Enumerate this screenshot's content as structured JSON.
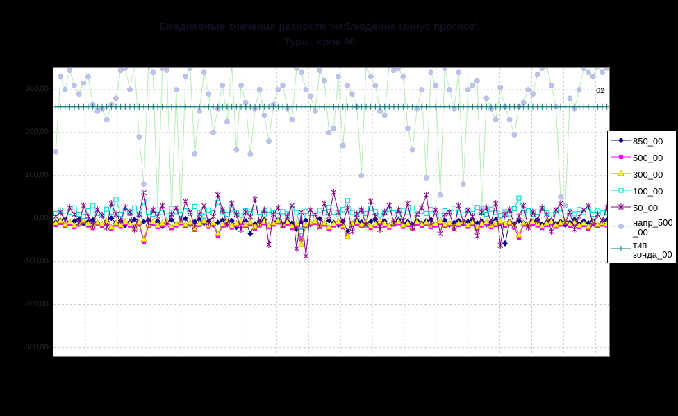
{
  "title": {
    "line1": "Ежедневные значения разности 'наблюдение минус прогноз'.",
    "line2": "Тура - срок 00"
  },
  "annotations": {
    "point_label": "62"
  },
  "colors": {
    "chart_background": "#000000",
    "plot_background": "#ffffff",
    "plot_border": "#808080",
    "gridline": "#c8c8c8",
    "title_text": "#0f1020",
    "axis_label_text": "#232d23",
    "legend_background": "#ffffff",
    "legend_border": "#000000"
  },
  "chart_data": {
    "type": "line",
    "title": "Ежедневные значения разности 'наблюдение минус прогноз'. Тура - срок 00",
    "xlabel": "",
    "ylabel": "",
    "ylim": [
      -320,
      350
    ],
    "grid": {
      "vline_spacing_px": 45.9,
      "vline_count": 17,
      "dash": "3 3"
    },
    "x": {
      "count": 120,
      "labels_visible": false
    },
    "legend_position": "right",
    "draw_order": [
      5,
      6,
      0,
      1,
      2,
      3,
      4
    ],
    "yticks": [
      {
        "v": 300,
        "label": "300,00"
      },
      {
        "v": 200,
        "label": "200,00"
      },
      {
        "v": 100,
        "label": "100,00"
      },
      {
        "v": 0,
        "label": "0,00"
      },
      {
        "v": -100,
        "label": "-100,00"
      },
      {
        "v": -200,
        "label": "-200,00"
      },
      {
        "v": -300,
        "label": "-300,00"
      }
    ],
    "series": [
      {
        "name": "850_00",
        "marker": "diamond",
        "color": "#000080",
        "fill": "#000080",
        "wrap": false,
        "values": [
          -8,
          -4,
          0,
          -10,
          -6,
          -2,
          -12,
          -7,
          -3,
          -9,
          -14,
          -6,
          1,
          -11,
          -5,
          -16,
          -8,
          -2,
          -13,
          -7,
          -4,
          -10,
          -6,
          -18,
          -9,
          -3,
          -12,
          -8,
          0,
          -14,
          -7,
          -2,
          -11,
          -6,
          -15,
          -9,
          -4,
          -13,
          -5,
          -20,
          -10,
          -6,
          -35,
          -12,
          -7,
          -3,
          -16,
          -8,
          -2,
          -12,
          -6,
          -10,
          -25,
          -8,
          -4,
          -14,
          -7,
          0,
          -11,
          -5,
          -9,
          -15,
          -6,
          -30,
          -10,
          -4,
          -8,
          -13,
          -7,
          -2,
          -12,
          -6,
          -16,
          -9,
          -3,
          -11,
          -7,
          -14,
          -5,
          -10,
          -6,
          -2,
          -13,
          -8,
          -4,
          -15,
          -9,
          -5,
          -12,
          -7,
          -3,
          -10,
          -6,
          -14,
          -8,
          -2,
          -11,
          -58,
          -7,
          -12,
          -5,
          -9,
          -16,
          -6,
          -3,
          -13,
          -8,
          -4,
          -11,
          -7,
          -15,
          -9,
          -2,
          -12,
          -6,
          -10,
          -5,
          -14,
          -8,
          -4
        ]
      },
      {
        "name": "500_00",
        "marker": "square",
        "color": "#ff00ff",
        "fill": "#ff00ff",
        "wrap": false,
        "values": [
          -15,
          -10,
          -18,
          -12,
          -20,
          -14,
          -8,
          -16,
          -22,
          -12,
          -17,
          -10,
          -24,
          -14,
          -19,
          -11,
          -16,
          -25,
          -13,
          -55,
          -18,
          -12,
          -20,
          -15,
          -10,
          -22,
          -16,
          -11,
          -18,
          -13,
          -26,
          -15,
          -9,
          -19,
          -14,
          -40,
          -17,
          -12,
          -21,
          -15,
          -10,
          -18,
          -13,
          -23,
          -16,
          -11,
          -20,
          -14,
          -9,
          -17,
          -12,
          -22,
          -15,
          -48,
          -18,
          -13,
          -10,
          -19,
          -14,
          -24,
          -16,
          -11,
          -20,
          -38,
          -15,
          -12,
          -18,
          -13,
          -22,
          -17,
          -10,
          -16,
          -21,
          -14,
          -11,
          -19,
          -15,
          -23,
          -12,
          -17,
          -13,
          -20,
          -16,
          -10,
          -18,
          -14,
          -22,
          -15,
          -11,
          -19,
          -13,
          -24,
          -16,
          -12,
          -20,
          -15,
          -10,
          -17,
          -13,
          -21,
          -45,
          -14,
          -18,
          -12,
          -16,
          -22,
          -15,
          -11,
          -19,
          -14,
          -10,
          -17,
          -13,
          -20,
          -15,
          -23,
          -12,
          -18,
          -14,
          -16
        ]
      },
      {
        "name": "300_00",
        "marker": "triangle",
        "color": "#a2a400",
        "fill": "#ffff00",
        "wrap": false,
        "values": [
          -10,
          -5,
          -14,
          -8,
          -16,
          -11,
          -4,
          -12,
          -18,
          -9,
          -13,
          -6,
          -20,
          -10,
          -15,
          -7,
          -12,
          -21,
          -9,
          -48,
          -14,
          -8,
          -16,
          -11,
          -6,
          -18,
          -12,
          -7,
          -14,
          -9,
          -22,
          -11,
          -5,
          -15,
          -10,
          -35,
          -13,
          -8,
          -17,
          -11,
          -6,
          -14,
          -9,
          -19,
          -12,
          -7,
          -16,
          -10,
          -5,
          -13,
          -8,
          -18,
          -11,
          -60,
          -14,
          -9,
          -6,
          -15,
          -10,
          -20,
          -12,
          -7,
          -16,
          -42,
          -11,
          -8,
          -14,
          -9,
          -18,
          -13,
          -6,
          -12,
          -17,
          -10,
          -7,
          -15,
          -11,
          -19,
          -8,
          -13,
          -9,
          -16,
          -12,
          -6,
          -14,
          -10,
          -18,
          -11,
          -7,
          -15,
          -9,
          -20,
          -12,
          -8,
          -16,
          -11,
          -6,
          -13,
          -9,
          -17,
          -38,
          -10,
          -14,
          -8,
          -12,
          -18,
          -11,
          -7,
          -15,
          -10,
          -6,
          -13,
          -9,
          -16,
          -11,
          -19,
          -8,
          -14,
          -10,
          -12
        ]
      },
      {
        "name": "100_00",
        "marker": "open-square",
        "color": "#00dcdc",
        "fill": "#ffffff",
        "wrap": false,
        "values": [
          12,
          20,
          8,
          15,
          25,
          10,
          5,
          18,
          30,
          12,
          8,
          22,
          15,
          45,
          10,
          18,
          12,
          25,
          8,
          40,
          15,
          10,
          20,
          14,
          8,
          24,
          16,
          10,
          18,
          12,
          28,
          14,
          6,
          20,
          13,
          38,
          16,
          10,
          22,
          14,
          8,
          18,
          12,
          25,
          15,
          9,
          20,
          13,
          7,
          16,
          11,
          24,
          14,
          -30,
          17,
          12,
          8,
          19,
          13,
          26,
          15,
          9,
          21,
          42,
          14,
          10,
          18,
          12,
          24,
          16,
          8,
          15,
          22,
          13,
          9,
          19,
          14,
          25,
          11,
          17,
          12,
          21,
          15,
          8,
          18,
          13,
          24,
          14,
          9,
          20,
          12,
          26,
          15,
          10,
          22,
          14,
          7,
          16,
          11,
          23,
          48,
          13,
          18,
          10,
          15,
          24,
          14,
          9,
          20,
          13,
          8,
          17,
          11,
          21,
          14,
          25,
          10,
          19,
          13,
          15
        ]
      },
      {
        "name": "50_00",
        "marker": "asterisk",
        "color": "#800080",
        "fill": "#800080",
        "wrap": false,
        "values": [
          5,
          15,
          -5,
          25,
          10,
          -10,
          30,
          5,
          -15,
          20,
          8,
          -20,
          35,
          10,
          -5,
          25,
          15,
          -25,
          10,
          60,
          -10,
          20,
          5,
          30,
          -15,
          10,
          25,
          -5,
          40,
          15,
          -20,
          10,
          30,
          -10,
          5,
          55,
          20,
          -15,
          35,
          10,
          -25,
          15,
          5,
          45,
          -10,
          20,
          -60,
          10,
          25,
          -15,
          5,
          30,
          -70,
          15,
          -87,
          20,
          10,
          -20,
          35,
          5,
          61,
          15,
          -10,
          25,
          -30,
          10,
          20,
          -15,
          40,
          5,
          -25,
          15,
          30,
          -10,
          20,
          -5,
          35,
          -20,
          10,
          25,
          55,
          -15,
          20,
          -35,
          10,
          15,
          -25,
          30,
          -10,
          20,
          5,
          -40,
          15,
          25,
          -10,
          35,
          -62,
          10,
          20,
          -15,
          5,
          30,
          -20,
          15,
          -5,
          25,
          10,
          -30,
          20,
          35,
          -10,
          15,
          -25,
          5,
          20,
          30,
          -15,
          10,
          -5,
          25
        ]
      },
      {
        "name": "напр_500_00",
        "marker": "circle",
        "color": "#b6ecb6",
        "fill": "#bdc4ec",
        "wrap": true,
        "values": [
          155,
          330,
          300,
          345,
          310,
          290,
          315,
          330,
          265,
          250,
          255,
          230,
          265,
          280,
          345,
          350,
          300,
          358,
          190,
          80,
          355,
          340,
          20,
          350,
          345,
          10,
          300,
          5,
          330,
          350,
          150,
          250,
          340,
          290,
          200,
          255,
          310,
          225,
          355,
          160,
          310,
          270,
          150,
          255,
          300,
          240,
          180,
          265,
          300,
          310,
          255,
          230,
          350,
          340,
          300,
          285,
          250,
          345,
          320,
          200,
          210,
          330,
          170,
          310,
          290,
          260,
          100,
          355,
          330,
          310,
          250,
          240,
          355,
          345,
          350,
          330,
          210,
          160,
          255,
          300,
          95,
          340,
          310,
          55,
          350,
          300,
          255,
          340,
          80,
          300,
          310,
          320,
          25,
          280,
          255,
          230,
          305,
          260,
          230,
          195,
          260,
          270,
          300,
          290,
          335,
          350,
          355,
          310,
          260,
          50,
          30,
          280,
          255,
          300,
          350,
          340,
          330,
          355,
          340,
          350
        ]
      },
      {
        "name": "тип зонда_00",
        "marker": "plus",
        "color": "#007878",
        "fill": "#007878",
        "wrap": true,
        "constant": 260
      }
    ]
  }
}
